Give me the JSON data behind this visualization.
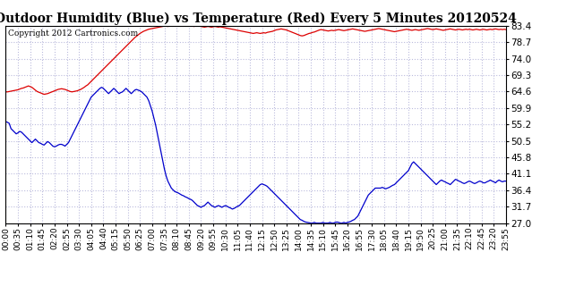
{
  "title": "Outdoor Humidity (Blue) vs Temperature (Red) Every 5 Minutes 20120524",
  "copyright": "Copyright 2012 Cartronics.com",
  "yticks": [
    27.0,
    31.7,
    36.4,
    41.1,
    45.8,
    50.5,
    55.2,
    59.9,
    64.6,
    69.3,
    74.0,
    78.7,
    83.4
  ],
  "ymin": 27.0,
  "ymax": 83.4,
  "red_color": "#dd0000",
  "blue_color": "#0000cc",
  "bg_color": "#ffffff",
  "grid_color": "#bbbbdd",
  "title_fontsize": 10,
  "copyright_fontsize": 6.5,
  "tick_fontsize": 6.5,
  "ytick_fontsize": 7.5,
  "temperature": [
    64.5,
    64.5,
    64.6,
    64.7,
    64.8,
    64.9,
    65.0,
    65.1,
    65.3,
    65.5,
    65.6,
    65.8,
    66.0,
    66.2,
    66.0,
    65.8,
    65.4,
    65.0,
    64.6,
    64.4,
    64.2,
    64.0,
    63.8,
    63.9,
    64.0,
    64.2,
    64.4,
    64.6,
    64.8,
    65.0,
    65.2,
    65.3,
    65.4,
    65.3,
    65.2,
    65.0,
    64.8,
    64.6,
    64.5,
    64.6,
    64.7,
    64.8,
    65.0,
    65.2,
    65.5,
    65.8,
    66.2,
    66.5,
    67.0,
    67.5,
    68.0,
    68.5,
    69.0,
    69.5,
    70.0,
    70.5,
    71.0,
    71.5,
    72.0,
    72.5,
    73.0,
    73.5,
    74.0,
    74.5,
    75.0,
    75.5,
    76.0,
    76.5,
    77.0,
    77.5,
    78.0,
    78.5,
    79.0,
    79.5,
    80.0,
    80.4,
    80.8,
    81.2,
    81.5,
    81.8,
    82.0,
    82.2,
    82.4,
    82.5,
    82.6,
    82.7,
    82.8,
    82.9,
    83.0,
    83.1,
    83.2,
    83.3,
    83.3,
    83.2,
    83.3,
    83.4,
    83.5,
    83.4,
    83.3,
    83.3,
    83.4,
    83.4,
    83.3,
    83.4,
    83.5,
    83.4,
    83.4,
    83.3,
    83.2,
    83.3,
    83.4,
    83.3,
    83.2,
    83.1,
    83.0,
    83.1,
    83.2,
    83.1,
    83.0,
    83.1,
    83.2,
    83.1,
    83.0,
    83.1,
    83.0,
    82.9,
    82.8,
    82.7,
    82.6,
    82.5,
    82.4,
    82.3,
    82.2,
    82.1,
    82.0,
    81.9,
    81.8,
    81.7,
    81.6,
    81.5,
    81.4,
    81.3,
    81.2,
    81.3,
    81.4,
    81.3,
    81.2,
    81.3,
    81.4,
    81.3,
    81.5,
    81.6,
    81.7,
    81.8,
    82.0,
    82.2,
    82.3,
    82.4,
    82.5,
    82.4,
    82.3,
    82.2,
    82.0,
    81.8,
    81.6,
    81.4,
    81.2,
    81.0,
    80.8,
    80.6,
    80.5,
    80.6,
    80.8,
    81.0,
    81.2,
    81.3,
    81.5,
    81.6,
    81.8,
    82.0,
    82.2,
    82.3,
    82.2,
    82.1,
    82.0,
    81.9,
    82.0,
    82.1,
    82.0,
    82.1,
    82.2,
    82.3,
    82.2,
    82.1,
    82.0,
    82.1,
    82.2,
    82.3,
    82.4,
    82.5,
    82.4,
    82.3,
    82.2,
    82.1,
    82.0,
    81.9,
    81.8,
    81.9,
    82.0,
    82.1,
    82.2,
    82.3,
    82.4,
    82.5,
    82.6,
    82.5,
    82.4,
    82.3,
    82.2,
    82.1,
    82.0,
    81.9,
    81.8,
    81.7,
    81.8,
    81.9,
    82.0,
    82.1,
    82.2,
    82.3,
    82.4,
    82.3,
    82.2,
    82.1,
    82.2,
    82.3,
    82.2,
    82.1,
    82.2,
    82.3,
    82.4,
    82.5,
    82.6,
    82.5,
    82.4,
    82.3,
    82.4,
    82.5,
    82.4,
    82.3,
    82.2,
    82.1,
    82.2,
    82.3,
    82.4,
    82.5,
    82.4,
    82.3,
    82.2,
    82.3,
    82.4,
    82.3,
    82.2,
    82.3,
    82.4,
    82.3,
    82.4,
    82.3,
    82.2,
    82.3,
    82.4,
    82.3,
    82.2,
    82.3,
    82.4,
    82.3,
    82.2,
    82.3,
    82.4,
    82.3,
    82.4,
    82.5,
    82.4,
    82.3,
    82.4,
    82.3,
    82.4,
    82.3
  ],
  "humidity": [
    56.0,
    55.8,
    55.5,
    54.0,
    53.5,
    53.0,
    52.5,
    52.8,
    53.2,
    53.0,
    52.5,
    52.0,
    51.5,
    51.0,
    50.5,
    50.0,
    50.5,
    51.0,
    50.5,
    50.0,
    49.8,
    49.5,
    49.3,
    49.8,
    50.3,
    50.0,
    49.5,
    49.0,
    48.8,
    49.0,
    49.3,
    49.5,
    49.5,
    49.3,
    49.0,
    49.5,
    50.0,
    51.0,
    52.0,
    53.0,
    54.0,
    55.0,
    56.0,
    57.0,
    58.0,
    59.0,
    60.0,
    61.0,
    62.0,
    63.0,
    63.5,
    64.0,
    64.5,
    65.0,
    65.5,
    65.8,
    65.5,
    65.0,
    64.5,
    64.0,
    64.5,
    65.0,
    65.5,
    65.0,
    64.5,
    64.0,
    64.3,
    64.5,
    65.0,
    65.5,
    65.0,
    64.5,
    64.0,
    64.5,
    65.0,
    65.2,
    65.0,
    64.8,
    64.5,
    64.0,
    63.5,
    63.0,
    62.0,
    60.5,
    59.0,
    57.0,
    55.0,
    52.5,
    50.0,
    47.5,
    45.0,
    42.5,
    40.5,
    39.0,
    38.0,
    37.0,
    36.5,
    36.0,
    35.8,
    35.6,
    35.3,
    35.0,
    34.8,
    34.5,
    34.3,
    34.0,
    33.8,
    33.5,
    33.0,
    32.5,
    32.0,
    31.8,
    31.5,
    31.8,
    32.0,
    32.5,
    33.0,
    32.5,
    32.0,
    31.8,
    31.5,
    31.8,
    32.0,
    31.8,
    31.5,
    31.8,
    32.0,
    31.8,
    31.5,
    31.3,
    31.0,
    31.2,
    31.5,
    31.8,
    32.0,
    32.5,
    33.0,
    33.5,
    34.0,
    34.5,
    35.0,
    35.5,
    36.0,
    36.5,
    37.0,
    37.5,
    38.0,
    38.2,
    38.0,
    37.8,
    37.5,
    37.0,
    36.5,
    36.0,
    35.5,
    35.0,
    34.5,
    34.0,
    33.5,
    33.0,
    32.5,
    32.0,
    31.5,
    31.0,
    30.5,
    30.0,
    29.5,
    29.0,
    28.5,
    28.0,
    27.8,
    27.5,
    27.3,
    27.2,
    27.1,
    27.0,
    27.0,
    27.2,
    27.0,
    27.0,
    27.0,
    27.0,
    27.2,
    27.0,
    27.0,
    27.0,
    27.2,
    27.0,
    27.0,
    27.2,
    27.3,
    27.2,
    27.0,
    27.0,
    27.2,
    27.0,
    27.2,
    27.3,
    27.5,
    27.8,
    28.0,
    28.5,
    29.0,
    30.0,
    31.0,
    32.0,
    33.0,
    34.0,
    35.0,
    35.5,
    36.0,
    36.5,
    37.0,
    37.0,
    37.0,
    37.0,
    37.2,
    37.0,
    36.8,
    37.0,
    37.2,
    37.5,
    37.8,
    38.0,
    38.5,
    39.0,
    39.5,
    40.0,
    40.5,
    41.0,
    41.5,
    42.0,
    43.0,
    44.0,
    44.5,
    44.0,
    43.5,
    43.0,
    42.5,
    42.0,
    41.5,
    41.0,
    40.5,
    40.0,
    39.5,
    39.0,
    38.5,
    38.0,
    38.5,
    39.0,
    39.3,
    39.0,
    38.8,
    38.5,
    38.3,
    38.0,
    38.5,
    39.0,
    39.5,
    39.3,
    39.0,
    38.8,
    38.5,
    38.3,
    38.5,
    38.8,
    39.0,
    38.8,
    38.5,
    38.3,
    38.5,
    38.8,
    39.0,
    38.8,
    38.5,
    38.5,
    38.8,
    39.0,
    39.3,
    39.0,
    38.8,
    38.5,
    39.0,
    39.3,
    39.0,
    38.8,
    39.0,
    39.0
  ]
}
